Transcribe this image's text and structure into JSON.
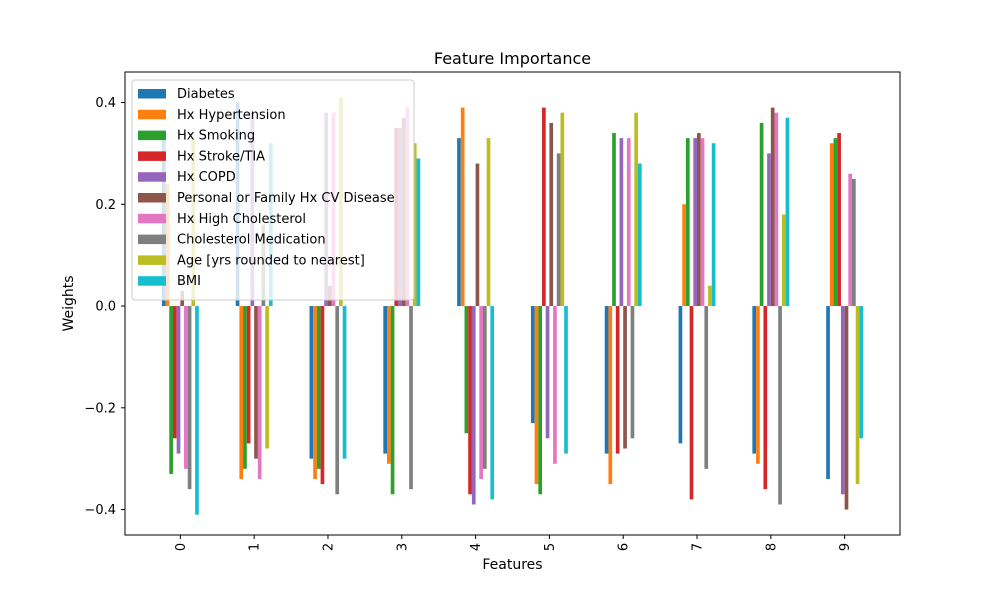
{
  "chart_data": {
    "type": "bar",
    "title": "Feature Importance",
    "xlabel": "Features",
    "ylabel": "Weights",
    "categories": [
      "0",
      "1",
      "2",
      "3",
      "4",
      "5",
      "6",
      "7",
      "8",
      "9"
    ],
    "ylim": [
      -0.45,
      0.46
    ],
    "yticks": [
      0.4,
      0.2,
      0.0,
      -0.2,
      -0.4
    ],
    "ytick_labels": [
      "0.4",
      "0.2",
      "0.0",
      "−0.2",
      "−0.4"
    ],
    "legend_position": "top-left",
    "grid": false,
    "series": [
      {
        "name": "Diabetes",
        "color": "#1f77b4",
        "values": [
          0.34,
          0.4,
          -0.3,
          -0.29,
          0.33,
          -0.23,
          -0.29,
          -0.27,
          -0.29,
          -0.34
        ]
      },
      {
        "name": "Hx Hypertension",
        "color": "#ff7f0e",
        "values": [
          0.24,
          -0.34,
          -0.34,
          -0.31,
          0.39,
          -0.35,
          -0.35,
          0.2,
          -0.31,
          0.32
        ]
      },
      {
        "name": "Hx Smoking",
        "color": "#2ca02c",
        "values": [
          -0.33,
          -0.32,
          -0.32,
          -0.37,
          -0.25,
          -0.37,
          0.34,
          0.33,
          0.36,
          0.33
        ]
      },
      {
        "name": "Hx Stroke/TIA",
        "color": "#d62728",
        "values": [
          -0.26,
          -0.27,
          -0.35,
          0.35,
          -0.37,
          0.39,
          -0.29,
          -0.38,
          -0.36,
          0.34
        ]
      },
      {
        "name": "Hx COPD",
        "color": "#9467bd",
        "values": [
          -0.29,
          0.38,
          0.38,
          0.35,
          -0.39,
          -0.26,
          0.33,
          0.33,
          0.3,
          -0.37
        ]
      },
      {
        "name": "Personal or Family Hx CV Disease",
        "color": "#8c564b",
        "values": [
          0.03,
          -0.3,
          0.04,
          0.37,
          0.28,
          0.36,
          -0.28,
          0.34,
          0.39,
          -0.4
        ]
      },
      {
        "name": "Hx High Cholesterol",
        "color": "#e377c2",
        "values": [
          -0.32,
          -0.34,
          0.38,
          0.39,
          -0.34,
          -0.31,
          0.33,
          0.33,
          0.38,
          0.26
        ]
      },
      {
        "name": "Cholesterol Medication",
        "color": "#7f7f7f",
        "values": [
          -0.36,
          0.16,
          -0.37,
          -0.36,
          -0.32,
          0.3,
          -0.26,
          -0.32,
          -0.39,
          0.25
        ]
      },
      {
        "name": "Age [yrs rounded to nearest]",
        "color": "#bcbd22",
        "values": [
          0.33,
          -0.28,
          0.41,
          0.32,
          0.33,
          0.38,
          0.38,
          0.04,
          0.18,
          -0.35
        ]
      },
      {
        "name": "BMI",
        "color": "#17becf",
        "values": [
          -0.41,
          0.32,
          -0.3,
          0.29,
          -0.38,
          -0.29,
          0.28,
          0.32,
          0.37,
          -0.26
        ]
      }
    ]
  }
}
